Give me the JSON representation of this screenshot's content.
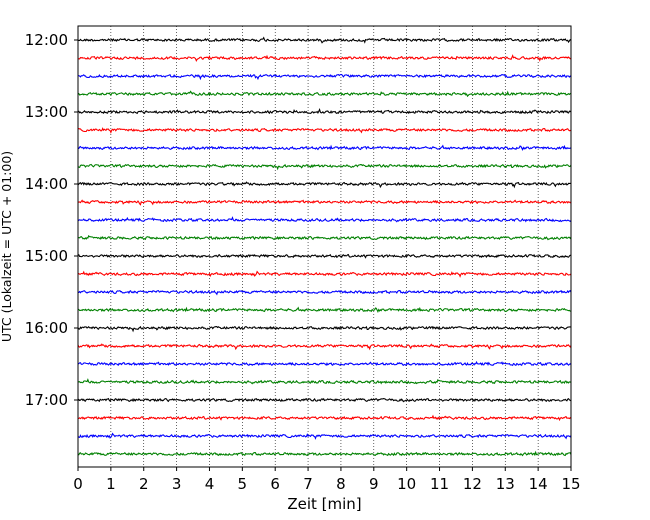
{
  "chart_data": {
    "type": "line",
    "title": "",
    "xlabel": "Zeit  [min]",
    "ylabel": "UTC (Lokalzeit = UTC + 01:00)",
    "xlim": [
      0,
      15
    ],
    "x_ticks": [
      "0",
      "1",
      "2",
      "3",
      "4",
      "5",
      "6",
      "7",
      "8",
      "9",
      "10",
      "11",
      "12",
      "13",
      "14",
      "15"
    ],
    "y_tick_labels": [
      "12:00",
      "13:00",
      "14:00",
      "15:00",
      "16:00",
      "17:00"
    ],
    "grid_x": true,
    "grid_style": "dotted",
    "trace_interval_minutes": 15,
    "trace_colors": [
      "#000000",
      "#ff0000",
      "#0000ff",
      "#008000"
    ],
    "series": [
      {
        "start": "12:00"
      },
      {
        "start": "12:15"
      },
      {
        "start": "12:30"
      },
      {
        "start": "12:45"
      },
      {
        "start": "13:00"
      },
      {
        "start": "13:15"
      },
      {
        "start": "13:30"
      },
      {
        "start": "13:45"
      },
      {
        "start": "14:00"
      },
      {
        "start": "14:15"
      },
      {
        "start": "14:30"
      },
      {
        "start": "14:45"
      },
      {
        "start": "15:00"
      },
      {
        "start": "15:15"
      },
      {
        "start": "15:30"
      },
      {
        "start": "15:45"
      },
      {
        "start": "16:00"
      },
      {
        "start": "16:15"
      },
      {
        "start": "16:30"
      },
      {
        "start": "16:45"
      },
      {
        "start": "17:00"
      },
      {
        "start": "17:15"
      },
      {
        "start": "17:30"
      },
      {
        "start": "17:45"
      }
    ]
  }
}
